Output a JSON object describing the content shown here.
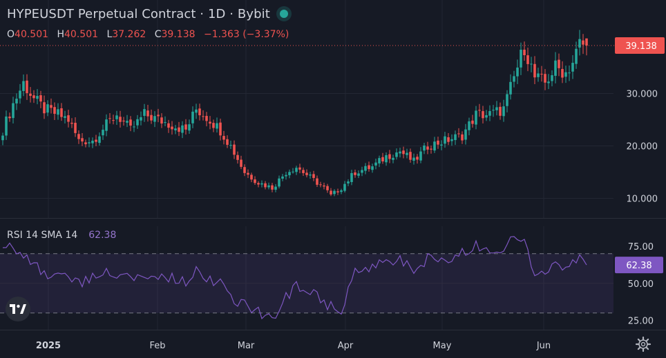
{
  "header": {
    "title": "HYPEUSDT Perpetual Contract · 1D · Bybit",
    "ohlc": {
      "open_label": "O",
      "open": "40.501",
      "high_label": "H",
      "high": "40.501",
      "low_label": "L",
      "low": "37.262",
      "close_label": "C",
      "close": "39.138",
      "change": "−1.363 (−3.37%)"
    }
  },
  "rsi": {
    "label": "RSI 14 SMA 14",
    "value": "62.38"
  },
  "price_tag": "39.138",
  "colors": {
    "up": "#26a69a",
    "down": "#ef5350",
    "rsi_line": "#7e57c2",
    "rsi_band": "rgba(126,87,194,0.12)",
    "price_line": "#ef5350",
    "background": "#161a25"
  },
  "icons": [
    "tradingview-logo-icon",
    "gear-icon",
    "status-dot-icon"
  ],
  "chart_data": [
    {
      "type": "candlestick",
      "title": "HYPEUSDT Perpetual Contract · 1D · Bybit",
      "x_ticks": [
        "2025",
        "Feb",
        "Mar",
        "Apr",
        "May",
        "Jun"
      ],
      "y_ticks": [
        "10.000",
        "20.000",
        "30.000"
      ],
      "ylim": [
        6,
        45
      ],
      "last_price": 39.138,
      "grid": true,
      "anchors": [
        [
          0,
          23
        ],
        [
          3,
          28
        ],
        [
          6,
          32
        ],
        [
          9,
          29
        ],
        [
          12,
          27
        ],
        [
          16,
          26
        ],
        [
          19,
          25
        ],
        [
          22,
          21
        ],
        [
          26,
          21
        ],
        [
          30,
          24
        ],
        [
          33,
          26
        ],
        [
          37,
          23
        ],
        [
          41,
          26
        ],
        [
          45,
          25
        ],
        [
          49,
          24
        ],
        [
          53,
          23
        ],
        [
          56,
          27
        ],
        [
          60,
          25
        ],
        [
          63,
          23
        ],
        [
          66,
          20
        ],
        [
          70,
          15
        ],
        [
          74,
          13
        ],
        [
          78,
          12
        ],
        [
          82,
          15
        ],
        [
          85,
          16
        ],
        [
          89,
          14
        ],
        [
          93,
          12
        ],
        [
          95,
          10.5
        ],
        [
          98,
          12
        ],
        [
          102,
          15
        ],
        [
          107,
          16
        ],
        [
          111,
          18
        ],
        [
          115,
          19
        ],
        [
          119,
          17
        ],
        [
          123,
          20
        ],
        [
          128,
          21
        ],
        [
          133,
          22
        ],
        [
          137,
          26
        ],
        [
          141,
          26
        ],
        [
          145,
          27
        ],
        [
          149,
          35
        ],
        [
          151,
          39
        ],
        [
          154,
          33
        ],
        [
          157,
          32
        ],
        [
          160,
          35
        ],
        [
          163,
          34
        ],
        [
          165,
          36
        ],
        [
          167,
          39.5
        ],
        [
          169,
          39.1
        ]
      ]
    },
    {
      "type": "line",
      "title": "RSI 14 SMA 14",
      "y_ticks": [
        "25.00",
        "50.00",
        "75.00"
      ],
      "ylim": [
        20,
        86
      ],
      "bands": [
        30,
        70
      ],
      "last_value": 62.38,
      "points": [
        [
          0,
          78
        ],
        [
          3,
          73
        ],
        [
          6,
          70
        ],
        [
          9,
          65
        ],
        [
          12,
          56
        ],
        [
          16,
          58
        ],
        [
          19,
          54
        ],
        [
          22,
          50
        ],
        [
          26,
          53
        ],
        [
          30,
          57
        ],
        [
          33,
          56
        ],
        [
          37,
          52
        ],
        [
          41,
          56
        ],
        [
          45,
          55
        ],
        [
          49,
          53
        ],
        [
          53,
          51
        ],
        [
          56,
          60
        ],
        [
          60,
          53
        ],
        [
          63,
          51
        ],
        [
          66,
          40
        ],
        [
          70,
          36
        ],
        [
          74,
          30
        ],
        [
          78,
          26
        ],
        [
          82,
          40
        ],
        [
          85,
          48
        ],
        [
          89,
          46
        ],
        [
          93,
          38
        ],
        [
          95,
          34
        ],
        [
          98,
          33
        ],
        [
          102,
          57
        ],
        [
          107,
          61
        ],
        [
          111,
          63
        ],
        [
          115,
          65
        ],
        [
          119,
          58
        ],
        [
          123,
          67
        ],
        [
          128,
          66
        ],
        [
          133,
          70
        ],
        [
          137,
          76
        ],
        [
          141,
          74
        ],
        [
          145,
          74
        ],
        [
          149,
          82
        ],
        [
          151,
          76
        ],
        [
          154,
          56
        ],
        [
          157,
          60
        ],
        [
          160,
          64
        ],
        [
          163,
          58
        ],
        [
          165,
          62
        ],
        [
          167,
          73
        ],
        [
          169,
          62.38
        ]
      ]
    }
  ]
}
